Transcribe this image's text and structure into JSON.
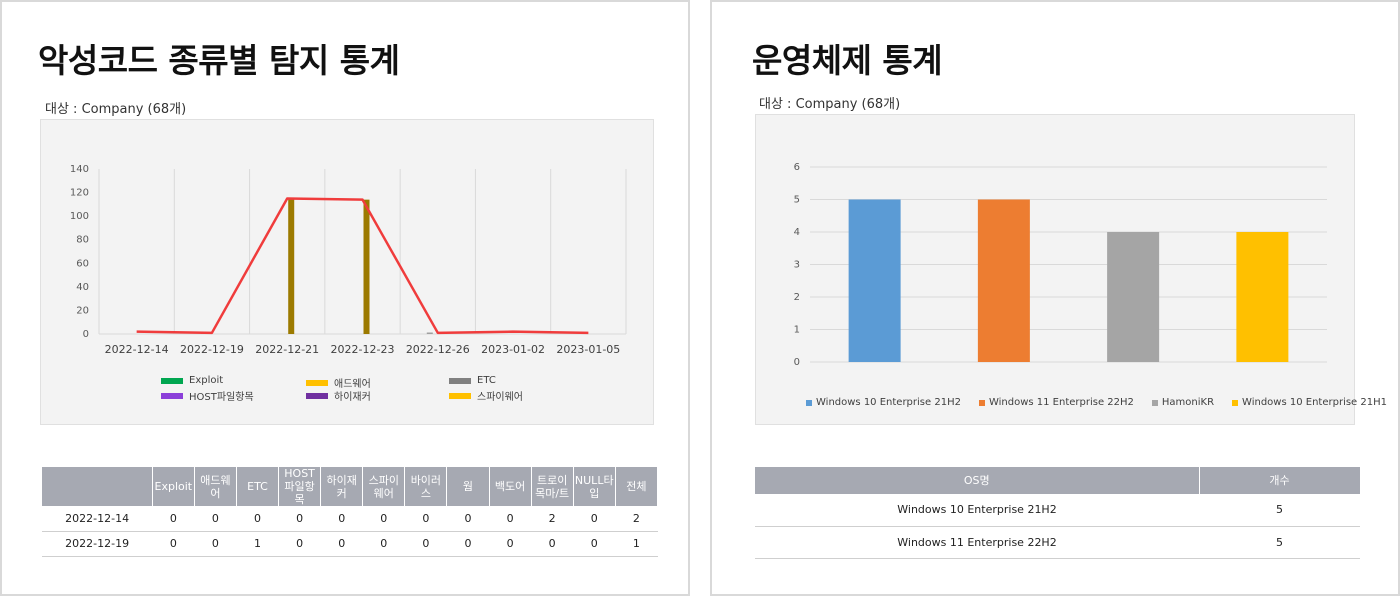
{
  "left": {
    "title": "악성코드 종류별 탐지 통계",
    "target": "대상 : Company (68개)",
    "legend": [
      {
        "label": "Exploit",
        "color": "#00a650"
      },
      {
        "label": "애드웨어",
        "color": "#ffc000"
      },
      {
        "label": "ETC",
        "color": "#808080"
      },
      {
        "label": "HOST파일항목",
        "color": "#8b3fd9"
      },
      {
        "label": "하이재커",
        "color": "#7030a0"
      },
      {
        "label": "스파이웨어",
        "color": "#ffc000"
      }
    ],
    "table": {
      "headers": [
        "",
        "Exploit",
        "애드웨어",
        "ETC",
        "HOST파일항목",
        "하이재커",
        "스파이웨어",
        "바이러스",
        "웜",
        "백도어",
        "트로이목마/트",
        "NULL타입",
        "전체"
      ],
      "rows": [
        [
          "2022-12-14",
          "0",
          "0",
          "0",
          "0",
          "0",
          "0",
          "0",
          "0",
          "0",
          "2",
          "0",
          "2"
        ],
        [
          "2022-12-19",
          "0",
          "0",
          "1",
          "0",
          "0",
          "0",
          "0",
          "0",
          "0",
          "0",
          "0",
          "1"
        ]
      ]
    }
  },
  "right": {
    "title": "운영체제 통계",
    "target": "대상 : Company (68개)",
    "table": {
      "headers": [
        "OS명",
        "개수"
      ],
      "rows": [
        [
          "Windows 10 Enterprise 21H2",
          "5"
        ],
        [
          "Windows 11 Enterprise 22H2",
          "5"
        ]
      ]
    }
  },
  "chart_data": [
    {
      "type": "line",
      "title": "",
      "categories": [
        "2022-12-14",
        "2022-12-19",
        "2022-12-21",
        "2022-12-23",
        "2022-12-26",
        "2023-01-02",
        "2023-01-05"
      ],
      "ylim": [
        0,
        140
      ],
      "yticks": [
        0,
        20,
        40,
        60,
        80,
        100,
        120,
        140
      ],
      "grid": "vertical",
      "legend_position": "bottom",
      "line": {
        "name": "전체",
        "color": "#f03c3c",
        "values": [
          2,
          1,
          115,
          114,
          1,
          2,
          1
        ]
      },
      "bars": [
        {
          "category": "2022-12-19",
          "name": "ETC",
          "color": "#a0a0a0",
          "value": 1
        },
        {
          "category": "2022-12-21",
          "name": "",
          "color": "#9c7a00",
          "value": 115
        },
        {
          "category": "2022-12-23",
          "name": "",
          "color": "#9c7a00",
          "value": 114
        },
        {
          "category": "2022-12-26",
          "name": "ETC",
          "color": "#a0a0a0",
          "value": 1
        }
      ]
    },
    {
      "type": "bar",
      "title": "",
      "categories": [
        "Windows 10 Enterprise 21H2",
        "Windows 11 Enterprise 22H2",
        "HamoniKR",
        "Windows 10 Enterprise 21H1"
      ],
      "values": [
        5,
        5,
        4,
        4
      ],
      "colors": [
        "#5b9bd5",
        "#ed7d31",
        "#a5a5a5",
        "#ffc000"
      ],
      "ylim": [
        0,
        6
      ],
      "yticks": [
        0,
        1,
        2,
        3,
        4,
        5,
        6
      ],
      "grid": "horizontal",
      "legend_position": "bottom"
    }
  ]
}
